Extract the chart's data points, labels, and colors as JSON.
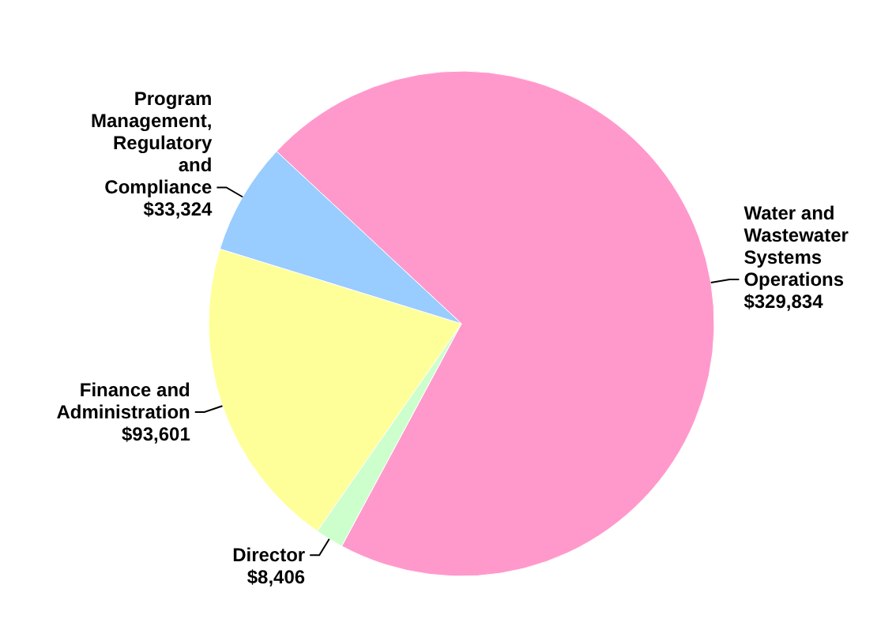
{
  "chart_data": {
    "type": "pie",
    "categories": [
      "Water and Wastewater Systems Operations",
      "Director",
      "Finance and Administration",
      "Program Management, Regulatory and Compliance"
    ],
    "values": [
      329834,
      8406,
      93601,
      33324
    ],
    "value_labels": [
      "$329,834",
      "$8,406",
      "$93,601",
      "$33,324"
    ],
    "colors": [
      "#ff99cc",
      "#ccffcc",
      "#ffff99",
      "#99ccff"
    ]
  }
}
